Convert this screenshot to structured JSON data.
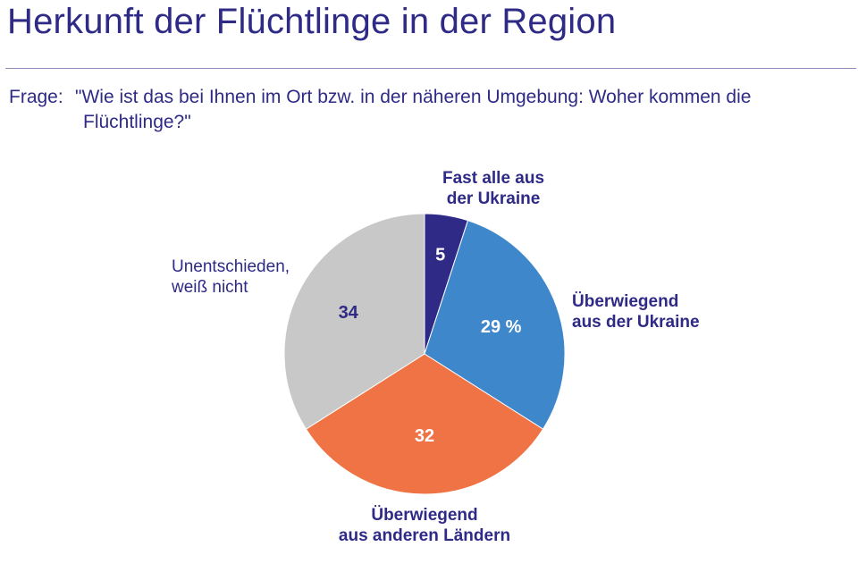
{
  "header": {
    "title": "Herkunft der Flüchtlinge in der Region",
    "question_label": "Frage:",
    "question_text": "\"Wie ist das bei Ihnen im Ort bzw. in der näheren Umgebung: Woher kommen die Flüchtlinge?\""
  },
  "chart_data": {
    "type": "pie",
    "start_angle_deg": 0,
    "direction": "clockwise",
    "slices": [
      {
        "label": [
          "Fast alle aus",
          "der Ukraine"
        ],
        "value": 5,
        "display": "5",
        "color": "#2e2a86",
        "value_color": "#ffffff",
        "label_style": "bold"
      },
      {
        "label": [
          "Überwiegend",
          "aus der Ukraine"
        ],
        "value": 29,
        "display": "29 %",
        "color": "#3e87cb",
        "value_color": "#ffffff",
        "label_style": "bold"
      },
      {
        "label": [
          "Überwiegend",
          "aus anderen Ländern"
        ],
        "value": 32,
        "display": "32",
        "color": "#ef7344",
        "value_color": "#ffffff",
        "label_style": "bold"
      },
      {
        "label": [
          "Unentschieden,",
          "weiß nicht"
        ],
        "value": 34,
        "display": "34",
        "color": "#c8c8c8",
        "value_color": "#2e2a86",
        "label_style": "normal"
      }
    ]
  }
}
